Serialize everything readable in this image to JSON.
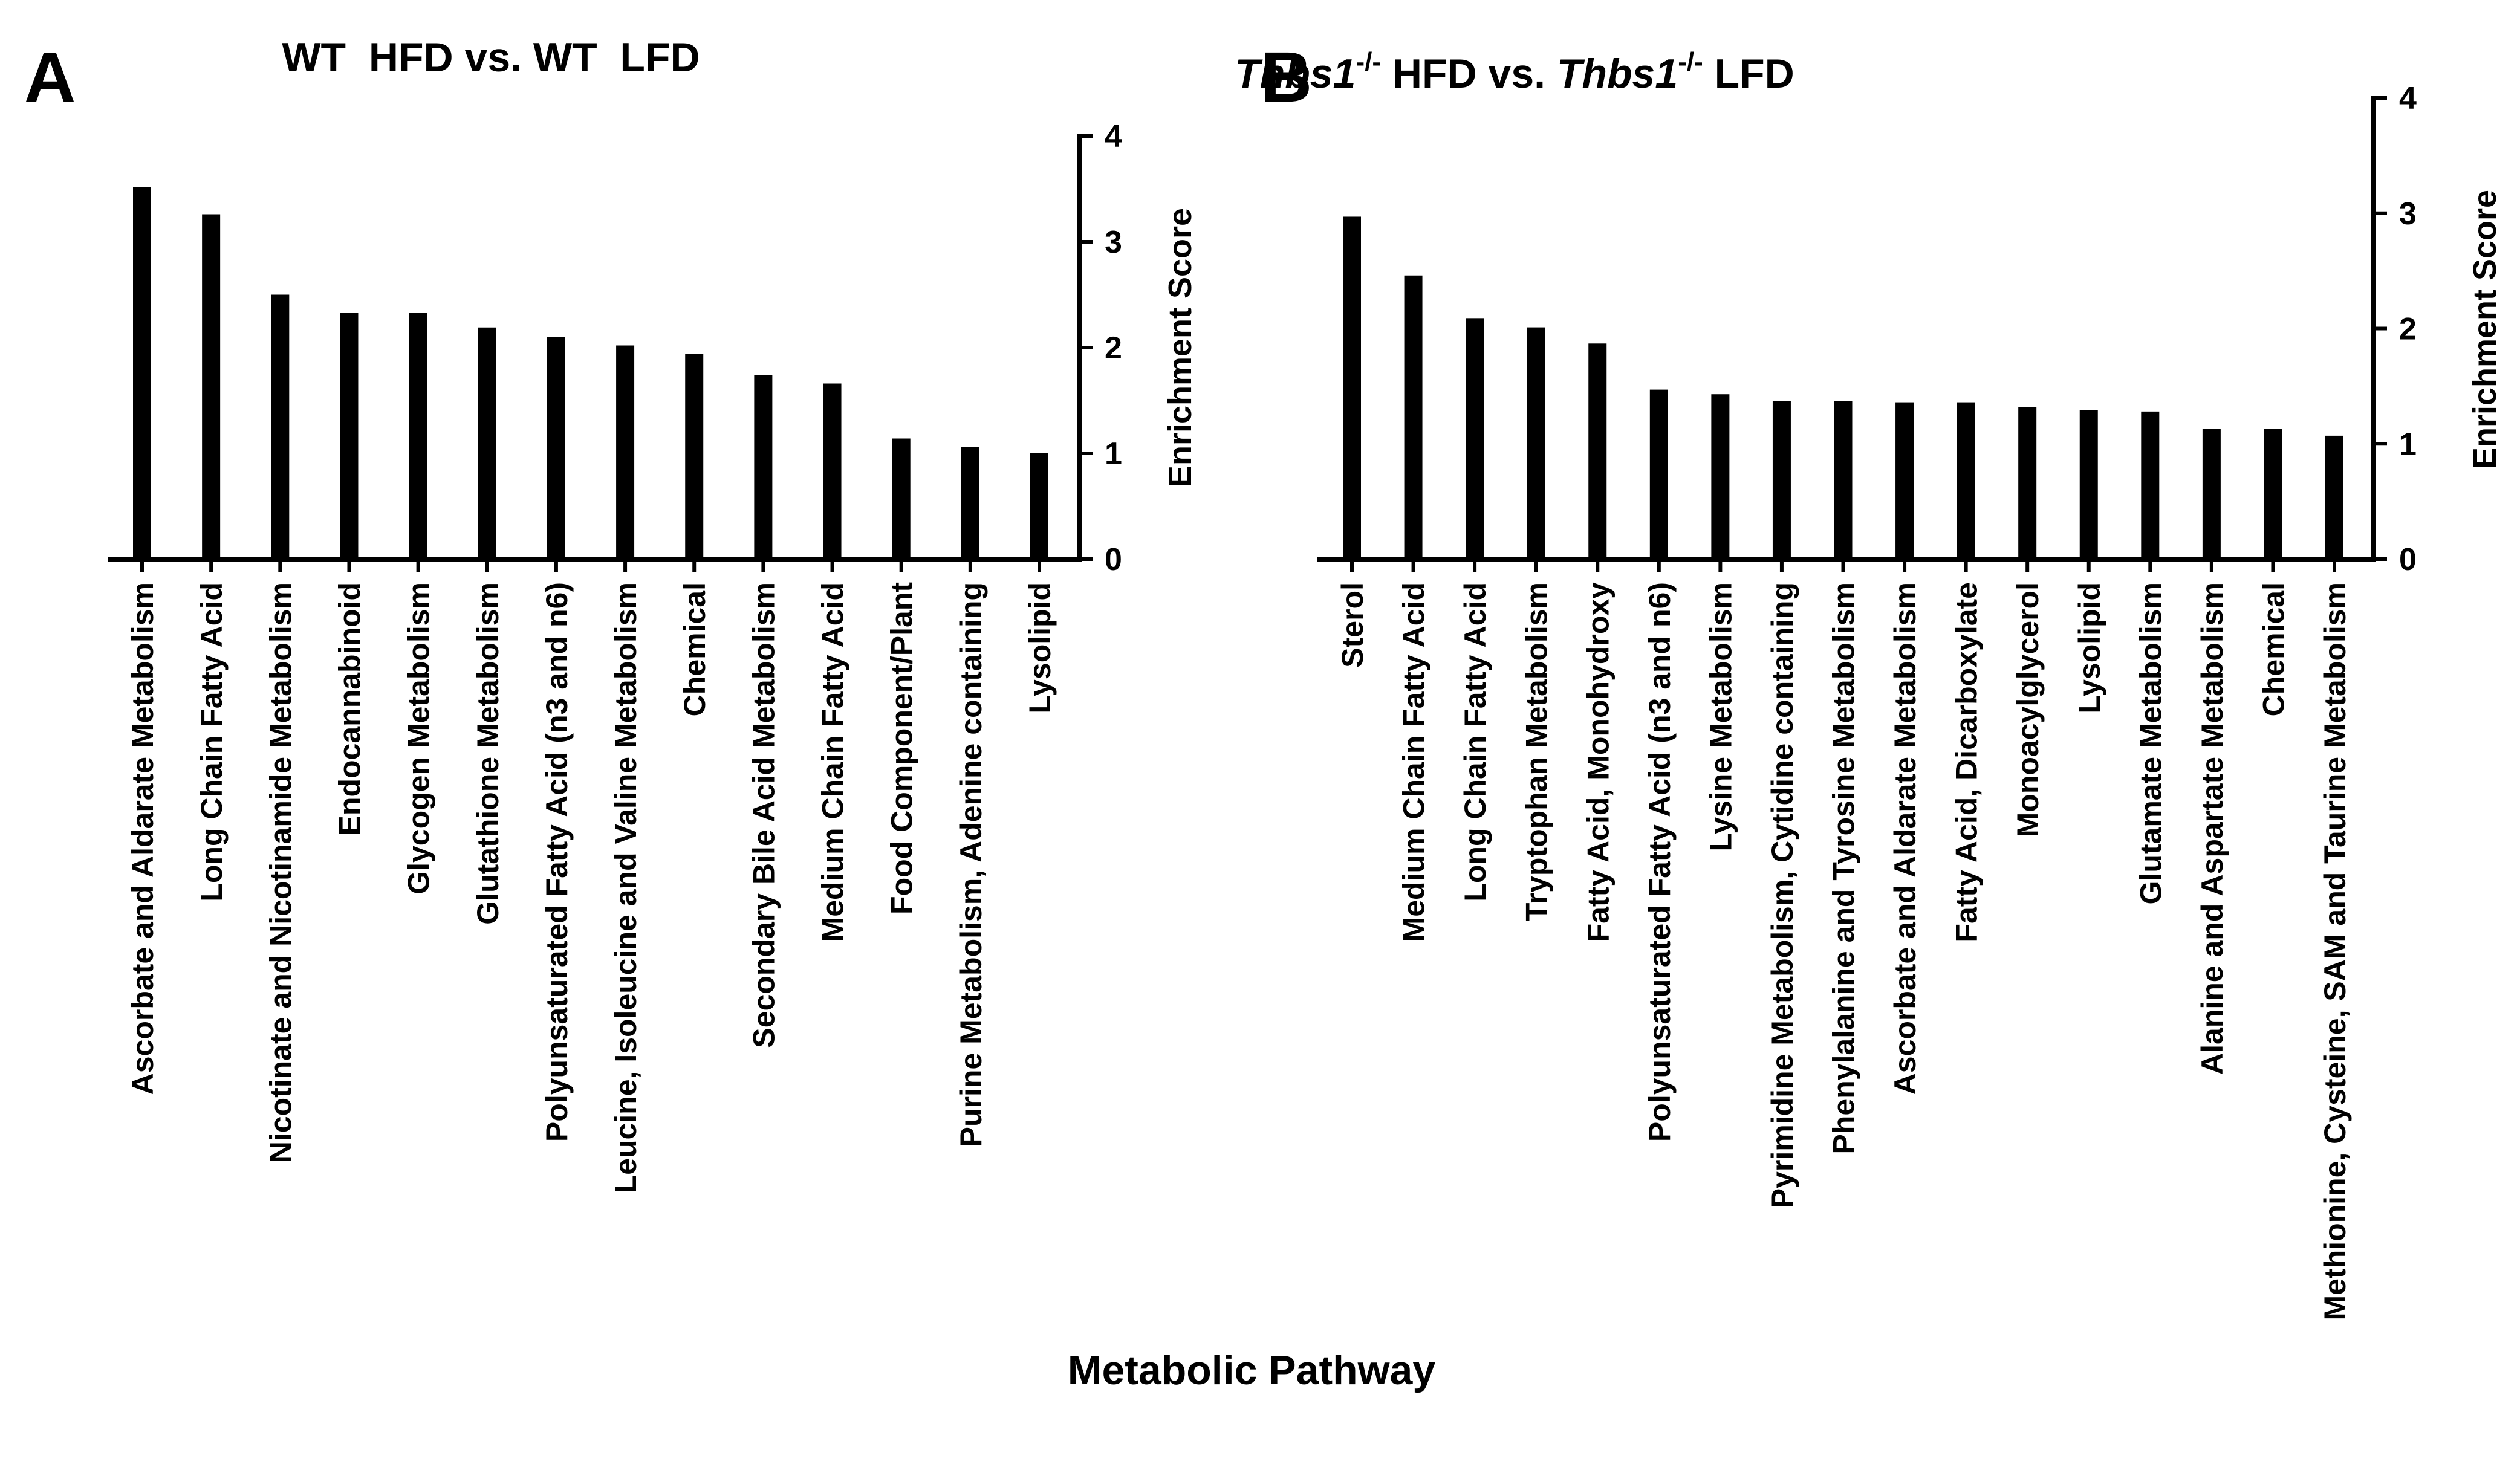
{
  "common_xlabel": "Metabolic Pathway",
  "chart_data": [
    {
      "type": "bar",
      "panel_label": "A",
      "title": "WT  HFD vs. WT  LFD",
      "xlabel": "",
      "ylabel": "Enrichment Score",
      "ylim": [
        0,
        4
      ],
      "yticks": [
        0,
        1,
        2,
        3,
        4
      ],
      "grid": false,
      "y_axis_side": "right",
      "categories": [
        "Ascorbate and Aldarate Metabolism",
        "Long Chain Fatty Acid",
        "Nicotinate and Nicotinamide Metabolism",
        "Endocannabinoid",
        "Glycogen Metabolism",
        "Glutathione Metabolism",
        "Polyunsaturated Fatty Acid (n3 and n6)",
        "Leucine, Isoleucine and Valine Metabolism",
        "Chemical",
        "Secondary Bile Acid Metabolism",
        "Medium Chain Fatty Acid",
        "Food Component/Plant",
        "Purine Metabolism, Adenine containing",
        "Lysolipid"
      ],
      "values": [
        3.52,
        3.26,
        2.5,
        2.33,
        2.33,
        2.19,
        2.1,
        2.02,
        1.94,
        1.74,
        1.66,
        1.14,
        1.06,
        1.0
      ]
    },
    {
      "type": "bar",
      "panel_label": "B",
      "title": {
        "part1_italic": "Thbs1",
        "part1_sup": "-/-",
        "part2": " HFD vs. ",
        "part3_italic": "Thbs1",
        "part3_sup": "-/-",
        "part4": " LFD"
      },
      "xlabel": "",
      "ylabel": "Enrichment Score",
      "ylim": [
        0,
        4
      ],
      "yticks": [
        0,
        1,
        2,
        3,
        4
      ],
      "grid": false,
      "y_axis_side": "right",
      "categories": [
        "Sterol",
        "Medium Chain Fatty Acid",
        "Long Chain Fatty Acid",
        "Tryptophan Metabolism",
        "Fatty Acid, Monohydroxy",
        "Polyunsaturated Fatty Acid (n3 and n6)",
        "Lysine Metabolism",
        "Pyrimidine Metabolism, Cytidine containing",
        "Phenylalanine and Tyrosine Metabolism",
        "Ascorbate and Aldarate Metabolism",
        "Fatty Acid, Dicarboxylate",
        "Monoacylglycerol",
        "Lysolipid",
        "Glutamate Metabolism",
        "Alanine and Aspartate Metabolism",
        "Chemical",
        "Methionine, Cysteine, SAM and Taurine Metabolism"
      ],
      "values": [
        2.97,
        2.46,
        2.09,
        2.01,
        1.87,
        1.47,
        1.43,
        1.37,
        1.37,
        1.36,
        1.36,
        1.32,
        1.29,
        1.28,
        1.13,
        1.13,
        1.07
      ]
    }
  ]
}
